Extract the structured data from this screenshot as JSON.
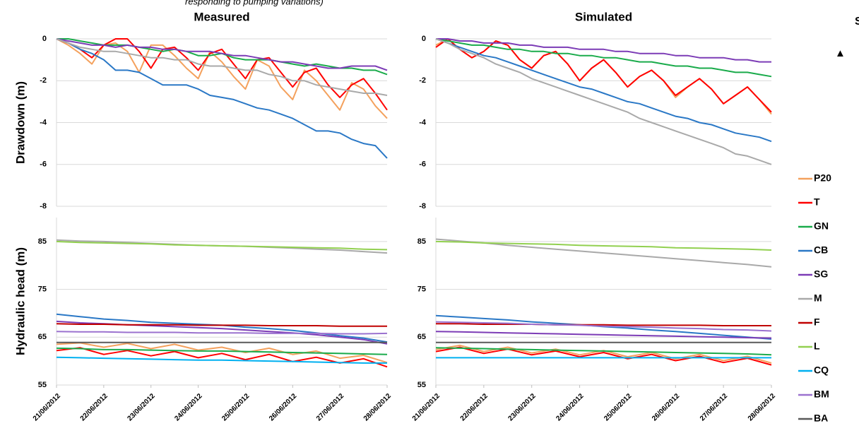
{
  "annotations": [
    "responding to pumping variations)",
    "S",
    "▲"
  ],
  "chart_data": [
    {
      "type": "line",
      "title": "Measured",
      "ylabel": "Drawdown (m)",
      "grid": true,
      "xlim": [
        0,
        7
      ],
      "ylim": [
        -8,
        0
      ],
      "yticks": [
        0,
        -2,
        -4,
        -6,
        -8
      ],
      "x": [
        0,
        0.25,
        0.5,
        0.75,
        1,
        1.25,
        1.5,
        1.75,
        2,
        2.25,
        2.5,
        2.75,
        3,
        3.25,
        3.5,
        3.75,
        4,
        4.25,
        4.5,
        4.75,
        5,
        5.25,
        5.5,
        5.75,
        6,
        6.25,
        6.5,
        6.75,
        7
      ],
      "series": [
        {
          "name": "P20",
          "color": "#f4a15d",
          "values": [
            0,
            -0.3,
            -0.7,
            -1.2,
            -0.3,
            -0.2,
            -0.6,
            -1.6,
            -0.3,
            -0.3,
            -0.8,
            -1.4,
            -1.9,
            -0.6,
            -1.1,
            -1.8,
            -2.4,
            -1,
            -1.3,
            -2.3,
            -2.9,
            -1.5,
            -2,
            -2.7,
            -3.4,
            -2.1,
            -2.4,
            -3.2,
            -3.8
          ]
        },
        {
          "name": "T",
          "color": "#ff0000",
          "values": [
            0,
            -0.2,
            -0.5,
            -0.9,
            -0.3,
            0,
            0,
            -0.6,
            -1.4,
            -0.5,
            -0.4,
            -0.9,
            -1.5,
            -0.7,
            -0.5,
            -1.2,
            -1.9,
            -1,
            -0.9,
            -1.6,
            -2.3,
            -1.6,
            -1.4,
            -2.2,
            -2.8,
            -2.2,
            -1.9,
            -2.6,
            -3.4
          ]
        },
        {
          "name": "GN",
          "color": "#1aab4b",
          "values": [
            0,
            0,
            -0.1,
            -0.2,
            -0.3,
            -0.3,
            -0.3,
            -0.4,
            -0.5,
            -0.6,
            -0.5,
            -0.6,
            -0.8,
            -0.8,
            -0.7,
            -0.9,
            -1,
            -1,
            -1,
            -1.1,
            -1.2,
            -1.3,
            -1.2,
            -1.3,
            -1.4,
            -1.4,
            -1.5,
            -1.5,
            -1.7
          ]
        },
        {
          "name": "CB",
          "color": "#2a78c6",
          "values": [
            0,
            -0.2,
            -0.5,
            -0.7,
            -1,
            -1.5,
            -1.5,
            -1.6,
            -1.9,
            -2.2,
            -2.2,
            -2.2,
            -2.4,
            -2.7,
            -2.8,
            -2.9,
            -3.1,
            -3.3,
            -3.4,
            -3.6,
            -3.8,
            -4.1,
            -4.4,
            -4.4,
            -4.5,
            -4.8,
            -5,
            -5.1,
            -5.7
          ]
        },
        {
          "name": "SG",
          "color": "#7c3cb6",
          "values": [
            0,
            -0.1,
            -0.2,
            -0.3,
            -0.3,
            -0.4,
            -0.3,
            -0.4,
            -0.4,
            -0.5,
            -0.5,
            -0.6,
            -0.6,
            -0.6,
            -0.7,
            -0.8,
            -0.8,
            -0.9,
            -1,
            -1.1,
            -1.1,
            -1.2,
            -1.3,
            -1.4,
            -1.4,
            -1.3,
            -1.3,
            -1.3,
            -1.5
          ]
        },
        {
          "name": "M",
          "color": "#a9a9a9",
          "values": [
            0,
            -0.2,
            -0.4,
            -0.5,
            -0.6,
            -0.6,
            -0.7,
            -0.8,
            -0.9,
            -0.9,
            -1,
            -1,
            -1.2,
            -1.3,
            -1.3,
            -1.4,
            -1.5,
            -1.5,
            -1.7,
            -1.8,
            -2,
            -2,
            -2.2,
            -2.3,
            -2.4,
            -2.5,
            -2.6,
            -2.6,
            -2.7
          ]
        }
      ]
    },
    {
      "type": "line",
      "title": "Simulated",
      "grid": true,
      "xlim": [
        0,
        7
      ],
      "ylim": [
        -8,
        0
      ],
      "yticks": [
        0,
        -2,
        -4,
        -6,
        -8
      ],
      "x": [
        0,
        0.25,
        0.5,
        0.75,
        1,
        1.25,
        1.5,
        1.75,
        2,
        2.25,
        2.5,
        2.75,
        3,
        3.25,
        3.5,
        3.75,
        4,
        4.25,
        4.5,
        4.75,
        5,
        5.25,
        5.5,
        5.75,
        6,
        6.25,
        6.5,
        6.75,
        7
      ],
      "series": [
        {
          "name": "P20",
          "color": "#f4a15d",
          "values": [
            -0.3,
            0,
            -0.5,
            -0.9,
            -0.6,
            -0.1,
            -0.3,
            -1,
            -1.4,
            -0.8,
            -0.6,
            -1.2,
            -2,
            -1.4,
            -1,
            -1.6,
            -2.3,
            -1.8,
            -1.5,
            -2,
            -2.8,
            -2.3,
            -1.9,
            -2.4,
            -3.1,
            -2.7,
            -2.3,
            -2.9,
            -3.6
          ]
        },
        {
          "name": "T",
          "color": "#ff0000",
          "values": [
            -0.4,
            0,
            -0.5,
            -0.9,
            -0.6,
            -0.1,
            -0.3,
            -1,
            -1.4,
            -0.8,
            -0.6,
            -1.2,
            -2,
            -1.4,
            -1,
            -1.6,
            -2.3,
            -1.8,
            -1.5,
            -2,
            -2.7,
            -2.3,
            -1.9,
            -2.4,
            -3.1,
            -2.7,
            -2.3,
            -2.9,
            -3.5
          ]
        },
        {
          "name": "GN",
          "color": "#1aab4b",
          "values": [
            0,
            -0.1,
            -0.2,
            -0.3,
            -0.3,
            -0.4,
            -0.5,
            -0.5,
            -0.6,
            -0.6,
            -0.7,
            -0.7,
            -0.8,
            -0.8,
            -0.9,
            -0.9,
            -1,
            -1.1,
            -1.1,
            -1.2,
            -1.3,
            -1.3,
            -1.4,
            -1.4,
            -1.5,
            -1.6,
            -1.6,
            -1.7,
            -1.8
          ]
        },
        {
          "name": "CB",
          "color": "#2a78c6",
          "values": [
            0,
            -0.2,
            -0.4,
            -0.6,
            -0.8,
            -0.9,
            -1.1,
            -1.3,
            -1.5,
            -1.7,
            -1.9,
            -2.1,
            -2.3,
            -2.4,
            -2.6,
            -2.8,
            -3,
            -3.1,
            -3.3,
            -3.5,
            -3.7,
            -3.8,
            -4,
            -4.1,
            -4.3,
            -4.5,
            -4.6,
            -4.7,
            -4.9
          ]
        },
        {
          "name": "SG",
          "color": "#7c3cb6",
          "values": [
            0,
            0,
            -0.1,
            -0.1,
            -0.2,
            -0.2,
            -0.2,
            -0.3,
            -0.3,
            -0.4,
            -0.4,
            -0.4,
            -0.5,
            -0.5,
            -0.5,
            -0.6,
            -0.6,
            -0.7,
            -0.7,
            -0.7,
            -0.8,
            -0.8,
            -0.9,
            -0.9,
            -0.9,
            -1,
            -1,
            -1.1,
            -1.1
          ]
        },
        {
          "name": "M",
          "color": "#a9a9a9",
          "values": [
            0,
            -0.2,
            -0.5,
            -0.7,
            -0.9,
            -1.2,
            -1.4,
            -1.6,
            -1.9,
            -2.1,
            -2.3,
            -2.5,
            -2.7,
            -2.9,
            -3.1,
            -3.3,
            -3.5,
            -3.8,
            -4,
            -4.2,
            -4.4,
            -4.6,
            -4.8,
            -5,
            -5.2,
            -5.5,
            -5.6,
            -5.8,
            -6
          ]
        }
      ]
    },
    {
      "type": "line",
      "ylabel": "Hydraulic head (m)",
      "grid": true,
      "legend": "right",
      "xlim": [
        0,
        7
      ],
      "ylim": [
        55,
        90
      ],
      "yticks": [
        55,
        65,
        75,
        85
      ],
      "xticks": [
        {
          "value": 0,
          "label": "21/06/2012"
        },
        {
          "value": 1,
          "label": "22/06/2012"
        },
        {
          "value": 2,
          "label": "23/06/2012"
        },
        {
          "value": 3,
          "label": "24/06/2012"
        },
        {
          "value": 4,
          "label": "25/06/2012"
        },
        {
          "value": 5,
          "label": "26/06/2012"
        },
        {
          "value": 6,
          "label": "27/06/2012"
        },
        {
          "value": 7,
          "label": "28/06/2012"
        }
      ],
      "x": [
        0,
        0.5,
        1,
        1.5,
        2,
        2.5,
        3,
        3.5,
        4,
        4.5,
        5,
        5.5,
        6,
        6.5,
        7
      ],
      "series": [
        {
          "name": "P20",
          "color": "#f4a15d",
          "values": [
            63.5,
            63.8,
            62.9,
            63.7,
            62.6,
            63.5,
            62.3,
            62.9,
            61.8,
            62.7,
            61.4,
            62.1,
            60.6,
            61.2,
            59.7
          ]
        },
        {
          "name": "T",
          "color": "#ff0000",
          "values": [
            62.2,
            62.8,
            61.4,
            62.2,
            61.1,
            62,
            60.7,
            61.6,
            60.3,
            61.4,
            59.9,
            60.8,
            59.6,
            60.5,
            58.8
          ]
        },
        {
          "name": "GN",
          "color": "#1aab4b",
          "values": [
            62.7,
            62.6,
            62.4,
            62.4,
            62.3,
            62.2,
            62.1,
            62.1,
            62,
            61.9,
            61.8,
            61.7,
            61.6,
            61.5,
            61.4
          ]
        },
        {
          "name": "CB",
          "color": "#2a78c6",
          "values": [
            69.8,
            69.3,
            68.8,
            68.5,
            68.1,
            67.9,
            67.7,
            67.5,
            67.1,
            66.8,
            66.4,
            65.9,
            65.3,
            64.8,
            64
          ]
        },
        {
          "name": "SG",
          "color": "#7c3cb6",
          "values": [
            68.3,
            68,
            67.8,
            67.6,
            67.4,
            67.2,
            67,
            66.8,
            66.5,
            66.2,
            65.9,
            65.5,
            65,
            64.5,
            63.6
          ]
        },
        {
          "name": "M",
          "color": "#a9a9a9",
          "values": [
            85.3,
            85.1,
            85,
            84.8,
            84.6,
            84.4,
            84.2,
            84.1,
            84,
            83.8,
            83.6,
            83.4,
            83.2,
            82.9,
            82.6
          ]
        },
        {
          "name": "F",
          "color": "#c00000",
          "values": [
            67.8,
            67.7,
            67.7,
            67.6,
            67.6,
            67.6,
            67.5,
            67.5,
            67.5,
            67.4,
            67.4,
            67.4,
            67.3,
            67.3,
            67.3
          ]
        },
        {
          "name": "L",
          "color": "#92d050",
          "values": [
            85,
            84.8,
            84.7,
            84.6,
            84.5,
            84.3,
            84.2,
            84.1,
            84,
            83.9,
            83.8,
            83.7,
            83.6,
            83.4,
            83.3
          ]
        },
        {
          "name": "CQ",
          "color": "#00b0f0",
          "values": [
            60.8,
            60.7,
            60.6,
            60.5,
            60.4,
            60.3,
            60.2,
            60.2,
            60.1,
            60,
            59.9,
            59.8,
            59.7,
            59.6,
            59.6
          ]
        },
        {
          "name": "BM",
          "color": "#9b72cf",
          "values": [
            66.2,
            66.1,
            66.1,
            66,
            66,
            66,
            65.9,
            65.9,
            65.9,
            65.8,
            65.8,
            65.8,
            65.7,
            65.7,
            65.8
          ]
        },
        {
          "name": "BA",
          "color": "#595959",
          "values": [
            63.9,
            63.9,
            63.9,
            63.9,
            63.9,
            63.9,
            63.9,
            63.9,
            63.9,
            63.9,
            63.9,
            63.9,
            63.9,
            63.9,
            63.9
          ]
        }
      ]
    },
    {
      "type": "line",
      "grid": true,
      "xlim": [
        0,
        7
      ],
      "ylim": [
        55,
        90
      ],
      "yticks": [
        55,
        65,
        75,
        85
      ],
      "xticks": [
        {
          "value": 0,
          "label": "21/06/2012"
        },
        {
          "value": 1,
          "label": "22/06/2012"
        },
        {
          "value": 2,
          "label": "23/06/2012"
        },
        {
          "value": 3,
          "label": "24/06/2012"
        },
        {
          "value": 4,
          "label": "25/06/2012"
        },
        {
          "value": 5,
          "label": "26/06/2012"
        },
        {
          "value": 6,
          "label": "27/06/2012"
        },
        {
          "value": 7,
          "label": "28/06/2012"
        }
      ],
      "x": [
        0,
        0.5,
        1,
        1.5,
        2,
        2.5,
        3,
        3.5,
        4,
        4.5,
        5,
        5.5,
        6,
        6.5,
        7
      ],
      "series": [
        {
          "name": "P20",
          "color": "#f4a15d",
          "values": [
            62.4,
            63.3,
            62,
            62.9,
            61.7,
            62.5,
            61.3,
            62.2,
            60.9,
            61.8,
            60.5,
            61.4,
            60.1,
            61,
            59.6
          ]
        },
        {
          "name": "T",
          "color": "#ff0000",
          "values": [
            62,
            62.9,
            61.6,
            62.5,
            61.3,
            62.1,
            60.9,
            61.8,
            60.5,
            61.4,
            60.1,
            61,
            59.7,
            60.6,
            59.2
          ]
        },
        {
          "name": "GN",
          "color": "#1aab4b",
          "values": [
            62.8,
            62.7,
            62.6,
            62.5,
            62.4,
            62.3,
            62.2,
            62.1,
            62,
            61.9,
            61.8,
            61.7,
            61.6,
            61.5,
            61.3
          ]
        },
        {
          "name": "CB",
          "color": "#2a78c6",
          "values": [
            69.5,
            69.2,
            68.9,
            68.6,
            68.2,
            67.9,
            67.6,
            67.2,
            66.9,
            66.5,
            66.2,
            65.8,
            65.4,
            65,
            64.6
          ]
        },
        {
          "name": "SG",
          "color": "#7c3cb6",
          "values": [
            66.2,
            66.1,
            66,
            65.9,
            65.8,
            65.7,
            65.6,
            65.5,
            65.4,
            65.3,
            65.2,
            65.1,
            65,
            64.9,
            64.8
          ]
        },
        {
          "name": "M",
          "color": "#a9a9a9",
          "values": [
            85.5,
            85.1,
            84.7,
            84.2,
            83.8,
            83.4,
            83,
            82.6,
            82.2,
            81.8,
            81.4,
            81,
            80.6,
            80.2,
            79.7
          ]
        },
        {
          "name": "F",
          "color": "#c00000",
          "values": [
            67.8,
            67.8,
            67.7,
            67.7,
            67.7,
            67.6,
            67.6,
            67.6,
            67.5,
            67.5,
            67.5,
            67.5,
            67.4,
            67.4,
            67.4
          ]
        },
        {
          "name": "L",
          "color": "#92d050",
          "values": [
            85,
            84.9,
            84.7,
            84.6,
            84.5,
            84.4,
            84.2,
            84.1,
            84,
            83.9,
            83.7,
            83.6,
            83.5,
            83.4,
            83.2
          ]
        },
        {
          "name": "CQ",
          "color": "#00b0f0",
          "values": [
            60.7,
            60.7,
            60.7,
            60.7,
            60.7,
            60.7,
            60.7,
            60.7,
            60.7,
            60.7,
            60.7,
            60.7,
            60.7,
            60.7,
            60.7
          ]
        },
        {
          "name": "BM",
          "color": "#9b72cf",
          "values": [
            68.2,
            68.1,
            68,
            67.9,
            67.7,
            67.6,
            67.5,
            67.3,
            67.2,
            67.1,
            66.9,
            66.8,
            66.6,
            66.5,
            66.3
          ]
        },
        {
          "name": "BA",
          "color": "#595959",
          "values": [
            63.9,
            63.9,
            63.9,
            63.9,
            63.9,
            63.9,
            63.9,
            63.9,
            63.9,
            63.9,
            63.9,
            63.9,
            63.9,
            63.9,
            63.9
          ]
        }
      ]
    }
  ]
}
